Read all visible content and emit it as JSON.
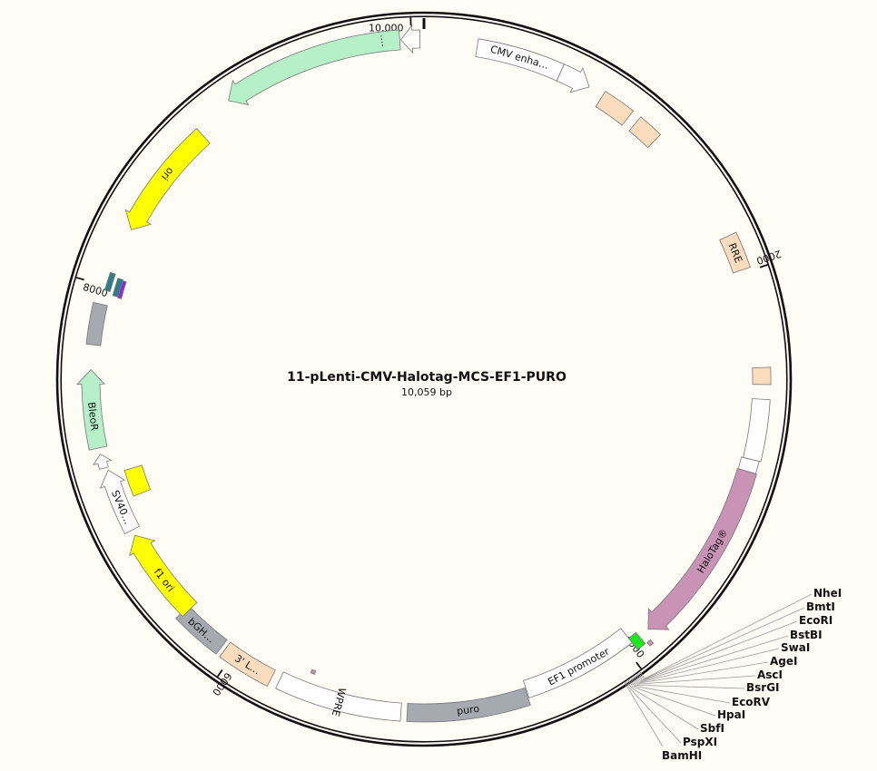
{
  "plasmid": {
    "name": "11-pLenti-CMV-Halotag-MCS-EF1-PURO",
    "length_label": "10,059 bp",
    "length_bp": 10059
  },
  "ticks": [
    {
      "bp": 2000,
      "label": "2000"
    },
    {
      "bp": 4000,
      "label": "4000"
    },
    {
      "bp": 6000,
      "label": "6000"
    },
    {
      "bp": 8000,
      "label": "8000"
    },
    {
      "bp": 10000,
      "label": "10,000"
    }
  ],
  "features": [
    {
      "id": "cmv-enhancer",
      "label": "CMV enha…",
      "start": 254,
      "end": 670,
      "dir": 0,
      "color": "#ffffff"
    },
    {
      "id": "cmv-promoter",
      "label": "",
      "start": 670,
      "end": 824,
      "dir": 1,
      "color": "#ffffff"
    },
    {
      "id": "misc-feature-1",
      "label": "",
      "start": 900,
      "end": 1060,
      "dir": 0,
      "color": "#fbdcbc"
    },
    {
      "id": "misc-feature-2",
      "label": "",
      "start": 1105,
      "end": 1230,
      "dir": 0,
      "color": "#fbdcbc"
    },
    {
      "id": "rre",
      "label": "RRE",
      "start": 1810,
      "end": 1985,
      "dir": 0,
      "color": "#fbdcbc"
    },
    {
      "id": "misc-feature-3",
      "label": "",
      "start": 2460,
      "end": 2540,
      "dir": 0,
      "color": "#fbdcbc"
    },
    {
      "id": "misc-feature-4",
      "label": "",
      "start": 2610,
      "end": 2900,
      "dir": 0,
      "color": "#ffffff"
    },
    {
      "id": "misc-feature-5",
      "label": "",
      "start": 2900,
      "end": 2960,
      "dir": 0,
      "color": "#ffffff"
    },
    {
      "id": "halotag",
      "label": "HaloTag®",
      "start": 2960,
      "end": 3860,
      "dir": 1,
      "color": "#c893b4"
    },
    {
      "id": "small-site-1",
      "label": "",
      "start": 3885,
      "end": 3905,
      "dir": 0,
      "color": "#c893b4"
    },
    {
      "id": "mcs-box",
      "label": "",
      "start": 3915,
      "end": 3960,
      "dir": 0,
      "color": "#1ee81e"
    },
    {
      "id": "ef1-promoter",
      "label": "EF1 promoter",
      "start": 3960,
      "end": 4520,
      "dir": 0,
      "color": "#ffffff"
    },
    {
      "id": "puro",
      "label": "puro",
      "start": 4525,
      "end": 5110,
      "dir": 0,
      "color": "#a5a9b0"
    },
    {
      "id": "wpre",
      "label": "WPRE",
      "start": 5140,
      "end": 5745,
      "dir": 0,
      "color": "#ffffff"
    },
    {
      "id": "small-site-2",
      "label": "",
      "start": 5598,
      "end": 5618,
      "dir": 0,
      "color": "#c893b4"
    },
    {
      "id": "3-ltr",
      "label": "3' L…",
      "start": 5785,
      "end": 6045,
      "dir": 0,
      "color": "#fbdcbc"
    },
    {
      "id": "bgh",
      "label": "bGH…",
      "start": 6065,
      "end": 6315,
      "dir": 0,
      "color": "#a5a9b0"
    },
    {
      "id": "f1-ori",
      "label": "f1 ori",
      "start": 6300,
      "end": 6750,
      "dir": 1,
      "color": "#ffff00"
    },
    {
      "id": "sv40-promoter",
      "label": "SV40…",
      "start": 6780,
      "end": 7095,
      "dir": 1,
      "color": "#ffffff"
    },
    {
      "id": "yellow-box",
      "label": "",
      "start": 6930,
      "end": 7070,
      "dir": 0,
      "color": "#ffff00"
    },
    {
      "id": "small-promoter",
      "label": "",
      "start": 7110,
      "end": 7180,
      "dir": 1,
      "color": "#ffffff"
    },
    {
      "id": "bleor",
      "label": "BleoR",
      "start": 7210,
      "end": 7590,
      "dir": 1,
      "color": "#b6f0c8"
    },
    {
      "id": "gray-box",
      "label": "",
      "start": 7710,
      "end": 7910,
      "dir": 0,
      "color": "#a5a9b0"
    },
    {
      "id": "teal-site-1",
      "label": "",
      "start": 7980,
      "end": 8070,
      "dir": 0,
      "color": "#2e7d8a"
    },
    {
      "id": "teal-site-2",
      "label": "",
      "start": 7965,
      "end": 8055,
      "dir": 0,
      "color": "#2e7d8a"
    },
    {
      "id": "purple-site",
      "label": "",
      "start": 7960,
      "end": 8050,
      "dir": 0,
      "color": "#8a2be2"
    },
    {
      "id": "ori",
      "label": "ori",
      "start": 8300,
      "end": 8880,
      "dir": -1,
      "color": "#ffff00"
    },
    {
      "id": "green-gene",
      "label": "",
      "start": 9080,
      "end": 9945,
      "dir": -1,
      "color": "#b6f0c8"
    },
    {
      "id": "small-reverse",
      "label": "",
      "start": 9950,
      "end": 10040,
      "dir": -1,
      "color": "#ffffff"
    }
  ],
  "enzymes": [
    {
      "name": "NheI"
    },
    {
      "name": "BmtI"
    },
    {
      "name": "EcoRI"
    },
    {
      "name": "BstBI"
    },
    {
      "name": "SwaI"
    },
    {
      "name": "AgeI"
    },
    {
      "name": "AscI"
    },
    {
      "name": "BsrGI"
    },
    {
      "name": "EcoRV"
    },
    {
      "name": "HpaI"
    },
    {
      "name": "SbfI"
    },
    {
      "name": "PspXI"
    },
    {
      "name": "BamHI"
    }
  ]
}
